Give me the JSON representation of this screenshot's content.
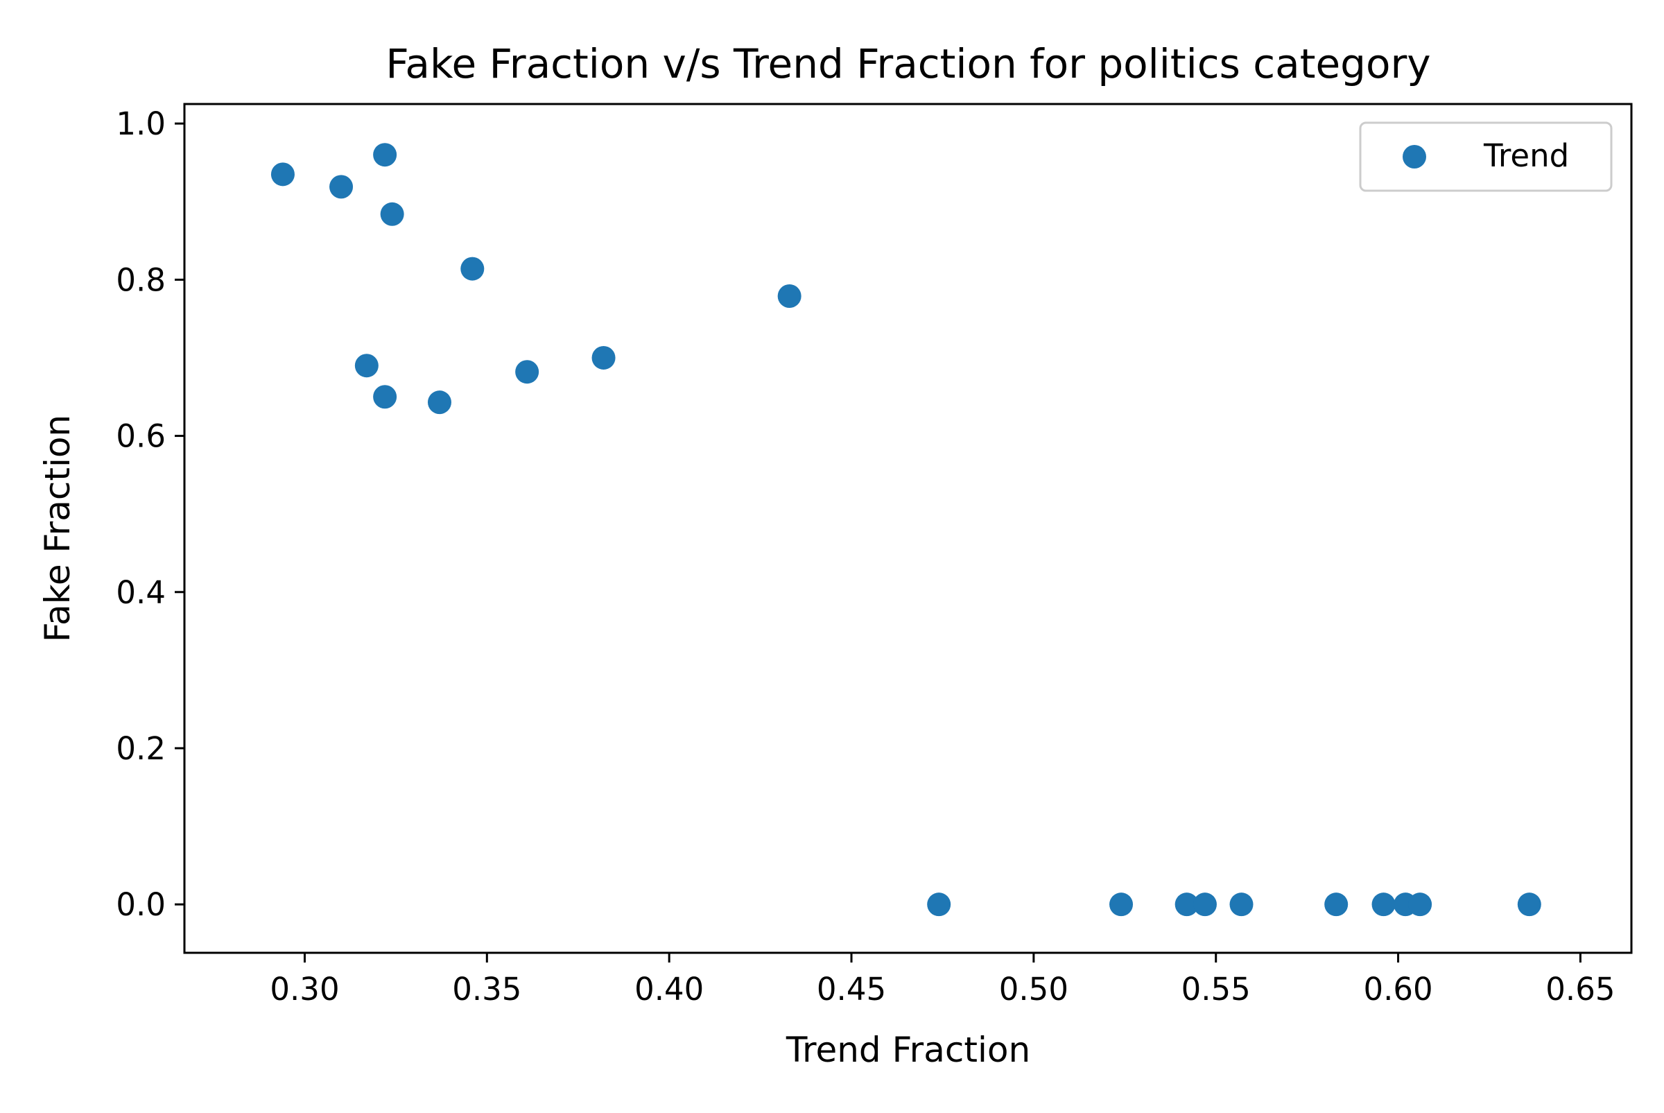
{
  "chart_data": {
    "type": "scatter",
    "title": "Fake Fraction v/s Trend Fraction for politics category",
    "xlabel": "Trend Fraction",
    "ylabel": "Fake Fraction",
    "xlim": [
      0.267,
      0.664
    ],
    "ylim": [
      -0.062,
      1.025
    ],
    "xticks": [
      0.3,
      0.35,
      0.4,
      0.45,
      0.5,
      0.55,
      0.6,
      0.65
    ],
    "xtick_labels": [
      "0.30",
      "0.35",
      "0.40",
      "0.45",
      "0.50",
      "0.55",
      "0.60",
      "0.65"
    ],
    "yticks": [
      0.0,
      0.2,
      0.4,
      0.6,
      0.8,
      1.0
    ],
    "ytick_labels": [
      "0.0",
      "0.2",
      "0.4",
      "0.6",
      "0.8",
      "1.0"
    ],
    "grid": false,
    "legend": {
      "position": "top-right",
      "entries": [
        "Trend"
      ]
    },
    "color": "#1f77b4",
    "series": [
      {
        "name": "Trend",
        "points": [
          {
            "x": 0.294,
            "y": 0.935
          },
          {
            "x": 0.31,
            "y": 0.919
          },
          {
            "x": 0.322,
            "y": 0.96
          },
          {
            "x": 0.324,
            "y": 0.884
          },
          {
            "x": 0.346,
            "y": 0.814
          },
          {
            "x": 0.433,
            "y": 0.779
          },
          {
            "x": 0.317,
            "y": 0.69
          },
          {
            "x": 0.322,
            "y": 0.65
          },
          {
            "x": 0.337,
            "y": 0.643
          },
          {
            "x": 0.361,
            "y": 0.682
          },
          {
            "x": 0.382,
            "y": 0.7
          },
          {
            "x": 0.474,
            "y": 0.0
          },
          {
            "x": 0.524,
            "y": 0.0
          },
          {
            "x": 0.542,
            "y": 0.0
          },
          {
            "x": 0.547,
            "y": 0.0
          },
          {
            "x": 0.557,
            "y": 0.0
          },
          {
            "x": 0.583,
            "y": 0.0
          },
          {
            "x": 0.596,
            "y": 0.0
          },
          {
            "x": 0.602,
            "y": 0.0
          },
          {
            "x": 0.606,
            "y": 0.0
          },
          {
            "x": 0.636,
            "y": 0.0
          }
        ]
      }
    ]
  }
}
